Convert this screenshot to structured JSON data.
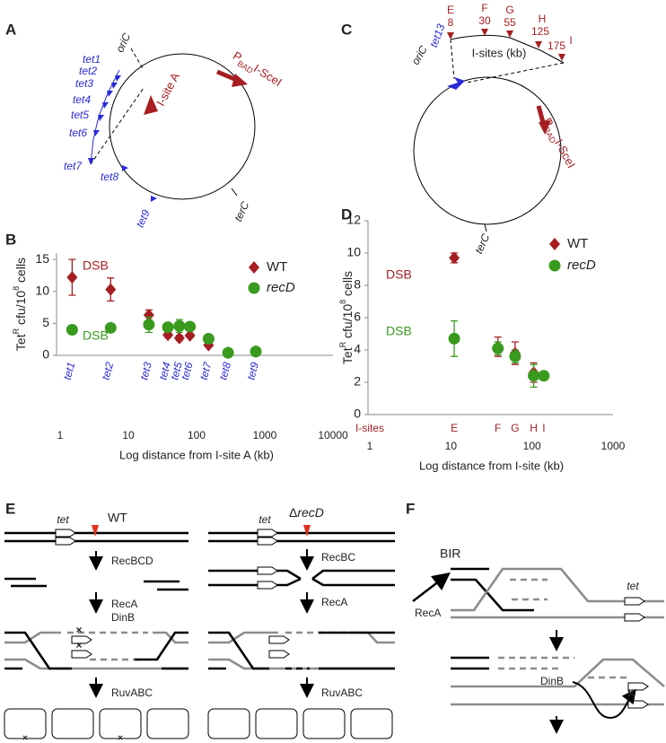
{
  "panel_labels": [
    "A",
    "B",
    "C",
    "D",
    "E",
    "F"
  ],
  "diagram_a": {
    "origin": "oriC",
    "terminus": "terC",
    "site": "I-site A",
    "promoter": "P",
    "promoter_sub": "BAD",
    "enzyme": "I-SceI",
    "tet_sites": [
      "tet1",
      "tet2",
      "tet3",
      "tet4",
      "tet5",
      "tet6",
      "tet7",
      "tet8",
      "tet9"
    ]
  },
  "diagram_c": {
    "origin": "oriC",
    "terminus": "terC",
    "tet": "tet13",
    "sites_label": "I-sites (kb)",
    "promoter": "P",
    "promoter_sub": "BAD",
    "enzyme": "I-SceI",
    "sites": [
      {
        "name": "E",
        "kb": "8"
      },
      {
        "name": "F",
        "kb": "30"
      },
      {
        "name": "G",
        "kb": "55"
      },
      {
        "name": "H",
        "kb": "125"
      },
      {
        "name": "I",
        "kb": "175"
      }
    ]
  },
  "chart_data": [
    {
      "type": "scatter",
      "x_label": "Log distance from I-site A (kb)",
      "y_label": [
        {
          "text": "Tet"
        },
        {
          "text": "R",
          "sup": true
        },
        {
          "text": " cfu/10"
        },
        {
          "text": "8",
          "sup": true
        },
        {
          "text": " cells"
        }
      ],
      "log_x": true,
      "xlim": [
        1,
        10000
      ],
      "xticks": [
        1,
        10,
        100,
        1000,
        10000
      ],
      "ylim": [
        0,
        16
      ],
      "yticks": [
        0,
        5,
        10,
        15
      ],
      "x": [
        1.5,
        5.5,
        20,
        38,
        56,
        80,
        150,
        290,
        740
      ],
      "point_labels": [
        "tet1",
        "tet2",
        "tet3",
        "tet4",
        "tet5",
        "tet6",
        "tet7",
        "tet8",
        "tet9"
      ],
      "point_label_color": "#2a2ad6",
      "series": [
        {
          "name": "WT",
          "color": "#a61e22",
          "marker": "diamond",
          "annotation": "DSB",
          "values": [
            12.2,
            10.3,
            6.3,
            3.2,
            2.7,
            3.1,
            1.6,
            0.4,
            0.6
          ],
          "errors": [
            2.8,
            1.8,
            0.8,
            0.4,
            0.4,
            0.3,
            0.3,
            0.2,
            0.2
          ]
        },
        {
          "name": "recD",
          "color": "#3a9a1e",
          "marker": "circle",
          "annotation": "DSB",
          "values": [
            4.0,
            4.3,
            4.8,
            4.4,
            4.6,
            4.5,
            2.6,
            0.4,
            0.6
          ],
          "errors": [
            0.3,
            0.2,
            1.2,
            0.3,
            1.0,
            0.5,
            0.3,
            0.3,
            0.3
          ]
        }
      ]
    },
    {
      "type": "scatter",
      "x_label": "Log distance from I-site (kb)",
      "y_label": [
        {
          "text": "Tet"
        },
        {
          "text": "R",
          "sup": true
        },
        {
          "text": " cfu/10"
        },
        {
          "text": "8",
          "sup": true
        },
        {
          "text": " cells"
        }
      ],
      "log_x": true,
      "xlim": [
        1,
        1000
      ],
      "xticks": [
        1,
        10,
        100,
        1000
      ],
      "ylim": [
        0,
        12
      ],
      "yticks": [
        0,
        2,
        4,
        6,
        8,
        10,
        12
      ],
      "x": [
        11,
        38,
        62,
        105,
        140
      ],
      "point_labels_title": "I-sites",
      "point_labels": [
        "E",
        "F",
        "G",
        "H",
        "I"
      ],
      "point_label_color": "#a61e22",
      "series": [
        {
          "name": "WT",
          "color": "#a61e22",
          "marker": "diamond",
          "annotation": "DSB",
          "values": [
            9.7,
            4.2,
            3.8,
            2.6,
            null
          ],
          "errors": [
            0.3,
            0.6,
            0.7,
            0.6,
            null
          ]
        },
        {
          "name": "recD",
          "color": "#3a9a1e",
          "marker": "circle",
          "annotation": "DSB",
          "values": [
            4.7,
            4.1,
            3.6,
            2.4,
            2.4
          ],
          "errors": [
            1.1,
            0.4,
            0.4,
            0.7,
            0.1
          ]
        }
      ]
    }
  ],
  "diagram_e": {
    "wt": {
      "gene": "tet",
      "title": "WT",
      "steps": [
        "RecBCD",
        "RecA",
        "DinB",
        "RuvABC"
      ]
    },
    "recd": {
      "gene": "tet",
      "title_prefix": "Δ",
      "title_gene": "recD",
      "steps": [
        "RecBC",
        "RecA",
        "RuvABC"
      ]
    }
  },
  "diagram_f": {
    "title": "BIR",
    "entry": "RecA",
    "gene": "tet",
    "polymerase": "DinB"
  }
}
